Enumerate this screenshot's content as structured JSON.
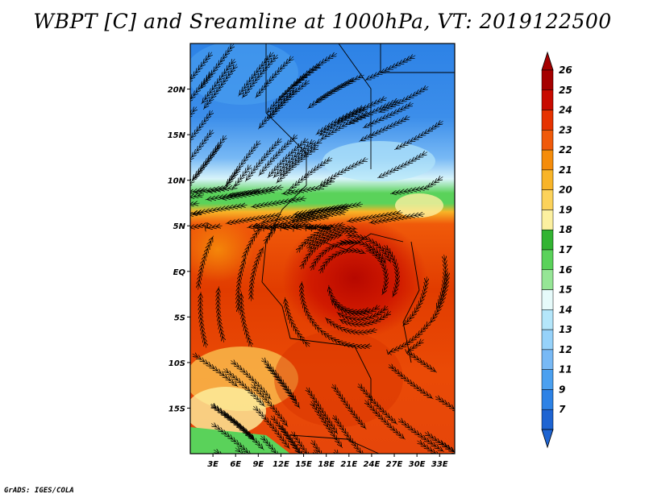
{
  "title": "WBPT [C] and Sreamline at 1000hPa, VT: 2019122500",
  "credit": "GrADS: IGES/COLA",
  "map": {
    "lon_range": [
      0,
      35
    ],
    "lat_range": [
      -20,
      25
    ],
    "lat_ticks": [
      {
        "value": 20,
        "label": "20N"
      },
      {
        "value": 15,
        "label": "15N"
      },
      {
        "value": 10,
        "label": "10N"
      },
      {
        "value": 5,
        "label": "5N"
      },
      {
        "value": 0,
        "label": "EQ"
      },
      {
        "value": -5,
        "label": "5S"
      },
      {
        "value": -10,
        "label": "10S"
      },
      {
        "value": -15,
        "label": "15S"
      }
    ],
    "lon_ticks": [
      {
        "value": 3,
        "label": "3E"
      },
      {
        "value": 6,
        "label": "6E"
      },
      {
        "value": 9,
        "label": "9E"
      },
      {
        "value": 12,
        "label": "12E"
      },
      {
        "value": 15,
        "label": "15E"
      },
      {
        "value": 18,
        "label": "18E"
      },
      {
        "value": 21,
        "label": "21E"
      },
      {
        "value": 24,
        "label": "24E"
      },
      {
        "value": 27,
        "label": "27E"
      },
      {
        "value": 30,
        "label": "30E"
      },
      {
        "value": 33,
        "label": "33E"
      }
    ]
  },
  "colorbar": {
    "labels": [
      "26",
      "25",
      "24",
      "23",
      "22",
      "21",
      "20",
      "19",
      "18",
      "17",
      "16",
      "15",
      "14",
      "13",
      "12",
      "11",
      "9",
      "7"
    ],
    "colors": [
      "#a50000",
      "#c80a00",
      "#e63200",
      "#f05a0a",
      "#f58c0a",
      "#f8b428",
      "#fcd25a",
      "#fcf0a0",
      "#32b432",
      "#5ad25a",
      "#96e696",
      "#e6fafa",
      "#b4e6fa",
      "#96d2fa",
      "#78b9f5",
      "#4ba0f0",
      "#2d82e6",
      "#1e64d2"
    ],
    "top_arrow_color": "#a50000",
    "bottom_arrow_color": "#1e64d2"
  }
}
